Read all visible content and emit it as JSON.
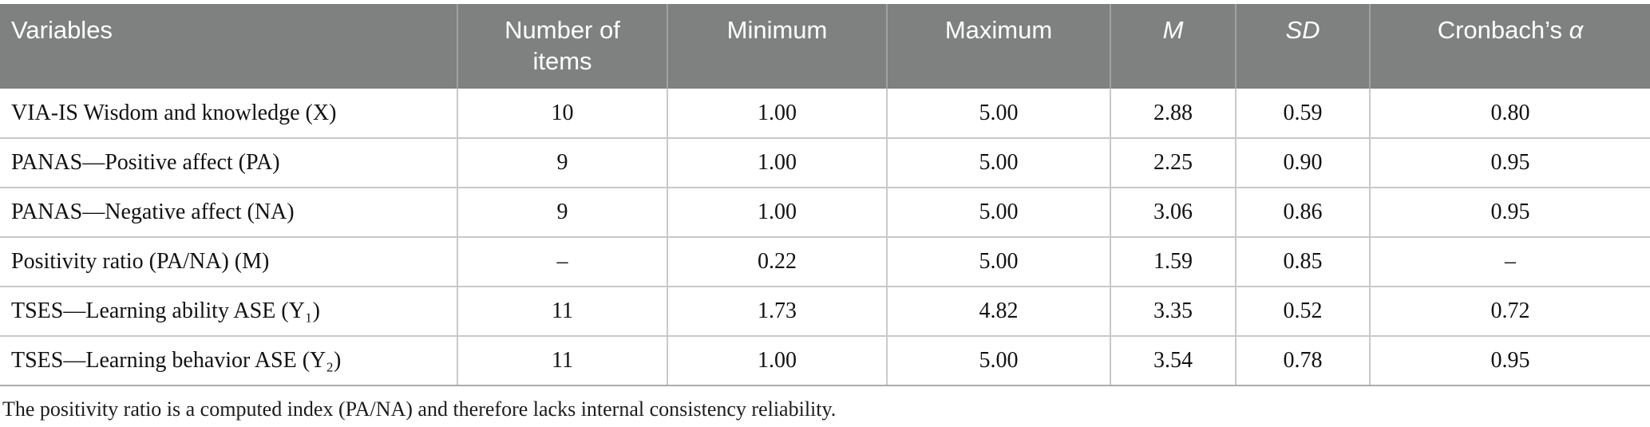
{
  "table": {
    "columns": [
      {
        "label": "Variables",
        "align": "left"
      },
      {
        "label": "Number of items",
        "align": "center"
      },
      {
        "label": "Minimum",
        "align": "center"
      },
      {
        "label": "Maximum",
        "align": "center"
      },
      {
        "label": "M",
        "align": "center",
        "italic": true
      },
      {
        "label": "SD",
        "align": "center",
        "italic": true
      },
      {
        "label": "Cronbach’s ",
        "symbol": "α",
        "align": "center"
      }
    ],
    "column_keys": [
      "variable",
      "items",
      "min",
      "max",
      "m",
      "sd",
      "alpha"
    ],
    "rows": [
      {
        "variable": "VIA-IS Wisdom and knowledge (X)",
        "items": "10",
        "min": "1.00",
        "max": "5.00",
        "m": "2.88",
        "sd": "0.59",
        "alpha": "0.80"
      },
      {
        "variable": "PANAS—Positive affect (PA)",
        "items": "9",
        "min": "1.00",
        "max": "5.00",
        "m": "2.25",
        "sd": "0.90",
        "alpha": "0.95"
      },
      {
        "variable": "PANAS—Negative affect (NA)",
        "items": "9",
        "min": "1.00",
        "max": "5.00",
        "m": "3.06",
        "sd": "0.86",
        "alpha": "0.95"
      },
      {
        "variable": "Positivity ratio (PA/NA) (M)",
        "items": "–",
        "min": "0.22",
        "max": "5.00",
        "m": "1.59",
        "sd": "0.85",
        "alpha": "–"
      },
      {
        "variable": "TSES—Learning ability ASE (Y₁)",
        "items": "11",
        "min": "1.73",
        "max": "4.82",
        "m": "3.35",
        "sd": "0.52",
        "alpha": "0.72"
      },
      {
        "variable": "TSES—Learning behavior ASE (Y₂)",
        "items": "11",
        "min": "1.00",
        "max": "5.00",
        "m": "3.54",
        "sd": "0.78",
        "alpha": "0.95"
      }
    ],
    "footnote": "The positivity ratio is a computed index (PA/NA) and therefore lacks internal consistency reliability.",
    "colors": {
      "header_bg": "#7e817f",
      "header_text": "#ffffff",
      "header_divider": "#9fa29f",
      "body_border": "#c9c9c9",
      "table_bottom_border": "#acacac"
    }
  }
}
